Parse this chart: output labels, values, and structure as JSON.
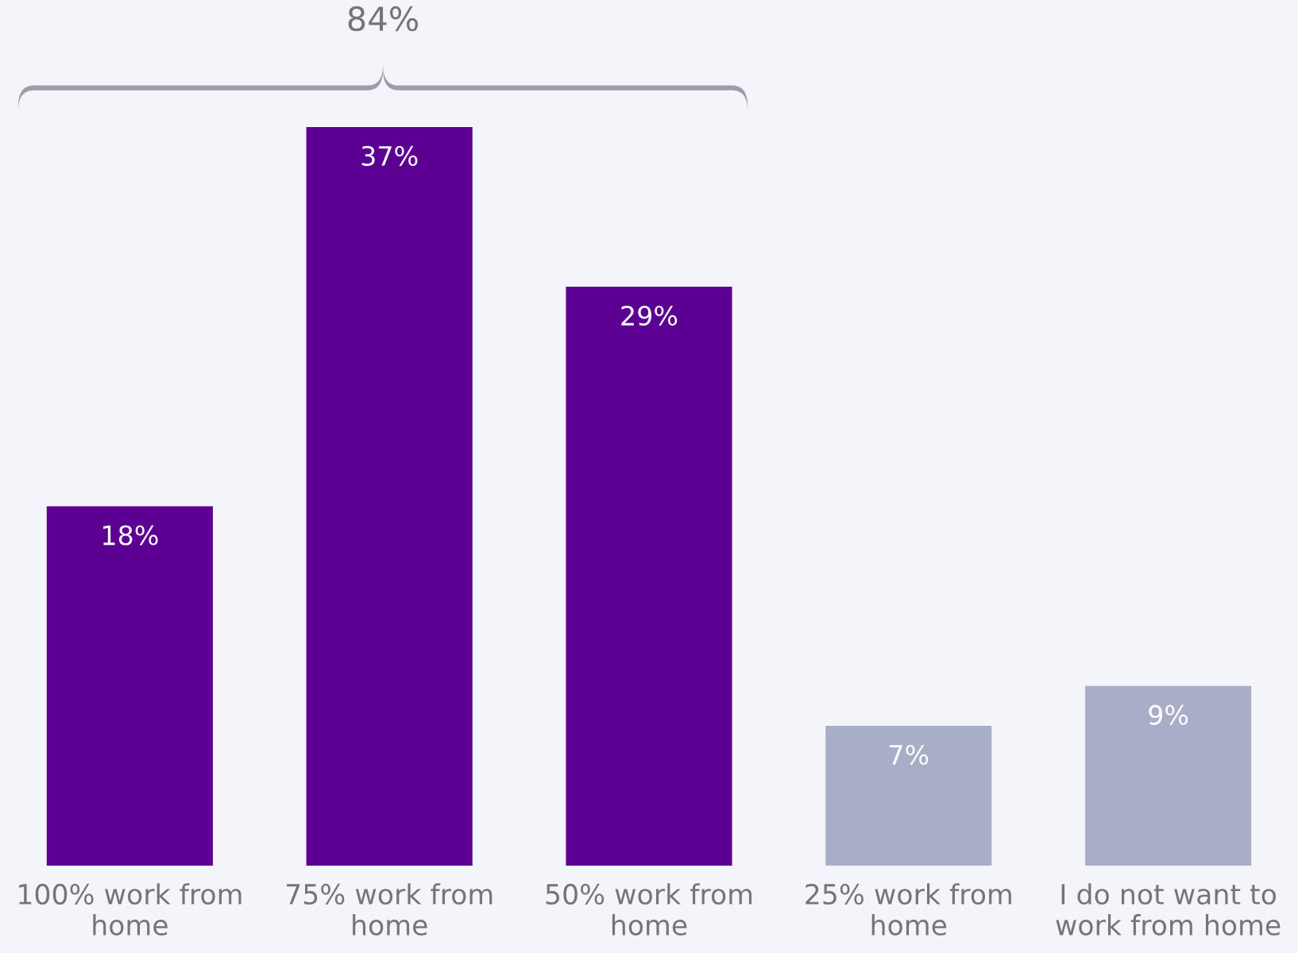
{
  "chart_data": {
    "type": "bar",
    "categories": [
      "100% work from\nhome",
      "75% work from\nhome",
      "50% work from\nhome",
      "25% work from\nhome",
      "I do not want to\nwork from home"
    ],
    "values": [
      18,
      37,
      29,
      7,
      9
    ],
    "value_labels": [
      "18%",
      "37%",
      "29%",
      "7%",
      "9%"
    ],
    "colors": [
      "#5c0094",
      "#5c0094",
      "#5c0094",
      "#a9aec8",
      "#a9aec8"
    ],
    "annotations": [
      "84%"
    ],
    "grid": false,
    "legend": false
  }
}
